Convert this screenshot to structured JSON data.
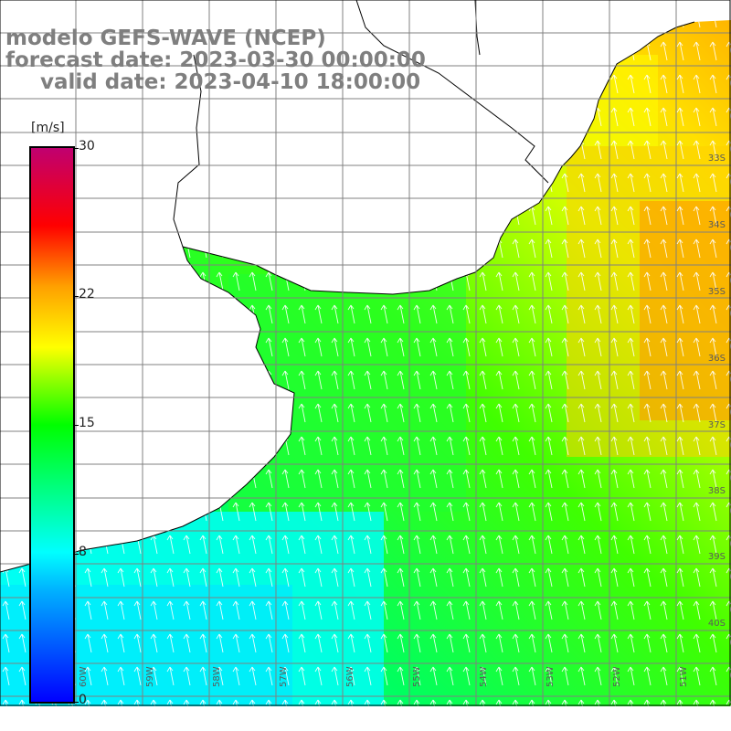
{
  "map": {
    "title_line1": "modelo GEFS-WAVE (NCEP)",
    "title_line2": "forecast date: 2023-03-30 00:00:00",
    "title_line3": "valid date: 2023-04-10 18:00:00",
    "lat_labels": [
      "33S",
      "34S",
      "35S",
      "36S",
      "37S",
      "38S",
      "39S",
      "40S"
    ],
    "lon_labels": [
      "60W",
      "59W",
      "58W",
      "57W",
      "56W",
      "55W",
      "54W",
      "53W",
      "52W",
      "51W"
    ],
    "colors": {
      "water_low": "#00ffff",
      "water_mid": "#00ff00",
      "water_high": "#ffff00",
      "land": "#ffffff",
      "grid": "#808080"
    }
  },
  "colorbar": {
    "unit": "[m/s]",
    "ticks": [
      {
        "label": "30",
        "value": 30
      },
      {
        "label": "22",
        "value": 22
      },
      {
        "label": "15",
        "value": 15
      },
      {
        "label": "8",
        "value": 8
      },
      {
        "label": "0",
        "value": 0
      }
    ],
    "range": [
      0,
      30
    ]
  }
}
